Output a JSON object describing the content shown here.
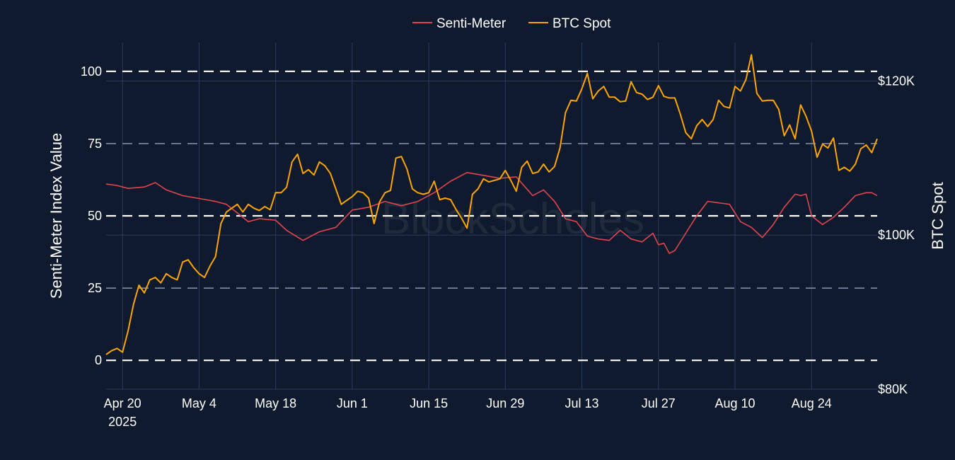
{
  "chart_data": {
    "type": "line",
    "watermark": "BlockScholes",
    "colors": {
      "background": "#0f1a2e",
      "grid": "#2a3a5c",
      "senti": "#e0454f",
      "btc": "#ffa500",
      "reference": "#ffffff"
    },
    "legend": {
      "placement": "top-center",
      "items": [
        {
          "label": "Senti-Meter",
          "color": "#e0454f"
        },
        {
          "label": "BTC Spot",
          "color": "#ffa500"
        }
      ]
    },
    "xaxis": {
      "range": [
        "2025-04-17",
        "2025-09-05"
      ],
      "ticks": [
        {
          "date": "2025-04-20",
          "label": "Apr 20",
          "sublabel": "2025"
        },
        {
          "date": "2025-05-04",
          "label": "May 4"
        },
        {
          "date": "2025-05-18",
          "label": "May 18"
        },
        {
          "date": "2025-06-01",
          "label": "Jun 1"
        },
        {
          "date": "2025-06-15",
          "label": "Jun 15"
        },
        {
          "date": "2025-06-29",
          "label": "Jun 29"
        },
        {
          "date": "2025-07-13",
          "label": "Jul 13"
        },
        {
          "date": "2025-07-27",
          "label": "Jul 27"
        },
        {
          "date": "2025-08-10",
          "label": "Aug 10"
        },
        {
          "date": "2025-08-24",
          "label": "Aug 24"
        }
      ]
    },
    "yaxis_left": {
      "title": "Senti-Meter Index Value",
      "range": [
        -10,
        110
      ],
      "ticks": [
        {
          "value": 0,
          "label": "0"
        },
        {
          "value": 25,
          "label": "25"
        },
        {
          "value": 50,
          "label": "50"
        },
        {
          "value": 75,
          "label": "75"
        },
        {
          "value": 100,
          "label": "100"
        }
      ],
      "reference_lines": [
        {
          "value": 0,
          "style": "dashed"
        },
        {
          "value": 25,
          "style": "dashed-faint"
        },
        {
          "value": 50,
          "style": "dashed"
        },
        {
          "value": 75,
          "style": "dashed-faint"
        },
        {
          "value": 100,
          "style": "dashed"
        }
      ]
    },
    "yaxis_right": {
      "title": "BTC Spot",
      "range": [
        80000,
        125000
      ],
      "ticks": [
        {
          "value": 80000,
          "label": "$80K"
        },
        {
          "value": 100000,
          "label": "$100K"
        },
        {
          "value": 120000,
          "label": "$120K"
        }
      ]
    },
    "series": [
      {
        "name": "Senti-Meter",
        "axis": "left",
        "color": "#e0454f",
        "points": [
          [
            "2025-04-17",
            61
          ],
          [
            "2025-04-19",
            60.5
          ],
          [
            "2025-04-21",
            59.5
          ],
          [
            "2025-04-24",
            60
          ],
          [
            "2025-04-26",
            61.5
          ],
          [
            "2025-04-28",
            59
          ],
          [
            "2025-05-01",
            57
          ],
          [
            "2025-05-04",
            56
          ],
          [
            "2025-05-07",
            55
          ],
          [
            "2025-05-09",
            54
          ],
          [
            "2025-05-11",
            51
          ],
          [
            "2025-05-13",
            48
          ],
          [
            "2025-05-15",
            49
          ],
          [
            "2025-05-18",
            48.5
          ],
          [
            "2025-05-20",
            45
          ],
          [
            "2025-05-23",
            41.5
          ],
          [
            "2025-05-26",
            44.5
          ],
          [
            "2025-05-29",
            46
          ],
          [
            "2025-06-01",
            52
          ],
          [
            "2025-06-04",
            53
          ],
          [
            "2025-06-07",
            55
          ],
          [
            "2025-06-10",
            53.5
          ],
          [
            "2025-06-13",
            55
          ],
          [
            "2025-06-16",
            58
          ],
          [
            "2025-06-19",
            62
          ],
          [
            "2025-06-22",
            65
          ],
          [
            "2025-06-25",
            64
          ],
          [
            "2025-06-28",
            63
          ],
          [
            "2025-07-01",
            63.5
          ],
          [
            "2025-07-04",
            57
          ],
          [
            "2025-07-06",
            59
          ],
          [
            "2025-07-08",
            55
          ],
          [
            "2025-07-10",
            49
          ],
          [
            "2025-07-12",
            48
          ],
          [
            "2025-07-14",
            43
          ],
          [
            "2025-07-16",
            42
          ],
          [
            "2025-07-18",
            41.5
          ],
          [
            "2025-07-20",
            45
          ],
          [
            "2025-07-22",
            42
          ],
          [
            "2025-07-24",
            41
          ],
          [
            "2025-07-26",
            44
          ],
          [
            "2025-07-27",
            40
          ],
          [
            "2025-07-28",
            40.5
          ],
          [
            "2025-07-29",
            37
          ],
          [
            "2025-07-30",
            38
          ],
          [
            "2025-08-01",
            44
          ],
          [
            "2025-08-03",
            50
          ],
          [
            "2025-08-05",
            55
          ],
          [
            "2025-08-07",
            54.5
          ],
          [
            "2025-08-09",
            54
          ],
          [
            "2025-08-11",
            48
          ],
          [
            "2025-08-13",
            46
          ],
          [
            "2025-08-15",
            42.5
          ],
          [
            "2025-08-17",
            47
          ],
          [
            "2025-08-19",
            53
          ],
          [
            "2025-08-21",
            57.5
          ],
          [
            "2025-08-22",
            57
          ],
          [
            "2025-08-23",
            57.5
          ],
          [
            "2025-08-24",
            50
          ],
          [
            "2025-08-26",
            47
          ],
          [
            "2025-08-28",
            49.5
          ],
          [
            "2025-08-30",
            53
          ],
          [
            "2025-09-01",
            57
          ],
          [
            "2025-09-03",
            58
          ],
          [
            "2025-09-04",
            58
          ],
          [
            "2025-09-05",
            57
          ]
        ]
      },
      {
        "name": "BTC Spot",
        "axis": "right",
        "color": "#ffa500",
        "points": [
          [
            "2025-04-17",
            84500
          ],
          [
            "2025-04-18",
            85000
          ],
          [
            "2025-04-19",
            85300
          ],
          [
            "2025-04-20",
            84800
          ],
          [
            "2025-04-21",
            87500
          ],
          [
            "2025-04-22",
            91000
          ],
          [
            "2025-04-23",
            93500
          ],
          [
            "2025-04-24",
            92500
          ],
          [
            "2025-04-25",
            94200
          ],
          [
            "2025-04-26",
            94500
          ],
          [
            "2025-04-27",
            93800
          ],
          [
            "2025-04-28",
            95000
          ],
          [
            "2025-04-29",
            94500
          ],
          [
            "2025-04-30",
            94200
          ],
          [
            "2025-05-01",
            96500
          ],
          [
            "2025-05-02",
            96800
          ],
          [
            "2025-05-03",
            95800
          ],
          [
            "2025-05-04",
            95000
          ],
          [
            "2025-05-05",
            94500
          ],
          [
            "2025-05-06",
            96000
          ],
          [
            "2025-05-07",
            97200
          ],
          [
            "2025-05-08",
            101500
          ],
          [
            "2025-05-09",
            103000
          ],
          [
            "2025-05-10",
            103500
          ],
          [
            "2025-05-11",
            104000
          ],
          [
            "2025-05-12",
            103000
          ],
          [
            "2025-05-13",
            104000
          ],
          [
            "2025-05-14",
            103500
          ],
          [
            "2025-05-15",
            103200
          ],
          [
            "2025-05-16",
            103700
          ],
          [
            "2025-05-17",
            103300
          ],
          [
            "2025-05-18",
            105500
          ],
          [
            "2025-05-19",
            105500
          ],
          [
            "2025-05-20",
            106200
          ],
          [
            "2025-05-21",
            109500
          ],
          [
            "2025-05-22",
            110500
          ],
          [
            "2025-05-23",
            108000
          ],
          [
            "2025-05-24",
            108500
          ],
          [
            "2025-05-25",
            107800
          ],
          [
            "2025-05-26",
            109500
          ],
          [
            "2025-05-27",
            109000
          ],
          [
            "2025-05-28",
            108000
          ],
          [
            "2025-05-29",
            106000
          ],
          [
            "2025-05-30",
            104000
          ],
          [
            "2025-05-31",
            104500
          ],
          [
            "2025-06-01",
            105000
          ],
          [
            "2025-06-02",
            105700
          ],
          [
            "2025-06-03",
            105500
          ],
          [
            "2025-06-04",
            104800
          ],
          [
            "2025-06-05",
            101500
          ],
          [
            "2025-06-06",
            104300
          ],
          [
            "2025-06-07",
            105500
          ],
          [
            "2025-06-08",
            105800
          ],
          [
            "2025-06-09",
            110000
          ],
          [
            "2025-06-10",
            110200
          ],
          [
            "2025-06-11",
            108600
          ],
          [
            "2025-06-12",
            106000
          ],
          [
            "2025-06-13",
            105500
          ],
          [
            "2025-06-14",
            105300
          ],
          [
            "2025-06-15",
            105500
          ],
          [
            "2025-06-16",
            107000
          ],
          [
            "2025-06-17",
            104600
          ],
          [
            "2025-06-18",
            104800
          ],
          [
            "2025-06-19",
            104600
          ],
          [
            "2025-06-20",
            103300
          ],
          [
            "2025-06-21",
            102200
          ],
          [
            "2025-06-22",
            100900
          ],
          [
            "2025-06-23",
            105300
          ],
          [
            "2025-06-24",
            106000
          ],
          [
            "2025-06-25",
            107300
          ],
          [
            "2025-06-26",
            106900
          ],
          [
            "2025-06-27",
            107100
          ],
          [
            "2025-06-28",
            107300
          ],
          [
            "2025-06-29",
            108400
          ],
          [
            "2025-06-30",
            107100
          ],
          [
            "2025-07-01",
            105700
          ],
          [
            "2025-07-02",
            108800
          ],
          [
            "2025-07-03",
            109600
          ],
          [
            "2025-07-04",
            108000
          ],
          [
            "2025-07-05",
            108200
          ],
          [
            "2025-07-06",
            109200
          ],
          [
            "2025-07-07",
            108200
          ],
          [
            "2025-07-08",
            108900
          ],
          [
            "2025-07-09",
            111300
          ],
          [
            "2025-07-10",
            115900
          ],
          [
            "2025-07-11",
            117500
          ],
          [
            "2025-07-12",
            117400
          ],
          [
            "2025-07-13",
            119000
          ],
          [
            "2025-07-14",
            121000
          ],
          [
            "2025-07-15",
            117700
          ],
          [
            "2025-07-16",
            118700
          ],
          [
            "2025-07-17",
            119300
          ],
          [
            "2025-07-18",
            117900
          ],
          [
            "2025-07-19",
            117900
          ],
          [
            "2025-07-20",
            117300
          ],
          [
            "2025-07-21",
            117400
          ],
          [
            "2025-07-22",
            119900
          ],
          [
            "2025-07-23",
            118500
          ],
          [
            "2025-07-24",
            118300
          ],
          [
            "2025-07-25",
            117600
          ],
          [
            "2025-07-26",
            117900
          ],
          [
            "2025-07-27",
            119400
          ],
          [
            "2025-07-28",
            118000
          ],
          [
            "2025-07-29",
            117800
          ],
          [
            "2025-07-30",
            117800
          ],
          [
            "2025-07-31",
            115700
          ],
          [
            "2025-08-01",
            113300
          ],
          [
            "2025-08-02",
            112500
          ],
          [
            "2025-08-03",
            114200
          ],
          [
            "2025-08-04",
            115000
          ],
          [
            "2025-08-05",
            114100
          ],
          [
            "2025-08-06",
            115000
          ],
          [
            "2025-08-07",
            117500
          ],
          [
            "2025-08-08",
            116700
          ],
          [
            "2025-08-09",
            116500
          ],
          [
            "2025-08-10",
            119300
          ],
          [
            "2025-08-11",
            118700
          ],
          [
            "2025-08-12",
            120200
          ],
          [
            "2025-08-13",
            123400
          ],
          [
            "2025-08-14",
            118400
          ],
          [
            "2025-08-15",
            117400
          ],
          [
            "2025-08-16",
            117500
          ],
          [
            "2025-08-17",
            117500
          ],
          [
            "2025-08-18",
            116300
          ],
          [
            "2025-08-19",
            112900
          ],
          [
            "2025-08-20",
            114300
          ],
          [
            "2025-08-21",
            112500
          ],
          [
            "2025-08-22",
            116900
          ],
          [
            "2025-08-23",
            115400
          ],
          [
            "2025-08-24",
            113500
          ],
          [
            "2025-08-25",
            110100
          ],
          [
            "2025-08-26",
            111800
          ],
          [
            "2025-08-27",
            111300
          ],
          [
            "2025-08-28",
            112600
          ],
          [
            "2025-08-29",
            108400
          ],
          [
            "2025-08-30",
            108800
          ],
          [
            "2025-08-31",
            108300
          ],
          [
            "2025-09-01",
            109200
          ],
          [
            "2025-09-02",
            111200
          ],
          [
            "2025-09-03",
            111700
          ],
          [
            "2025-09-04",
            110700
          ],
          [
            "2025-09-05",
            112500
          ]
        ]
      }
    ]
  }
}
